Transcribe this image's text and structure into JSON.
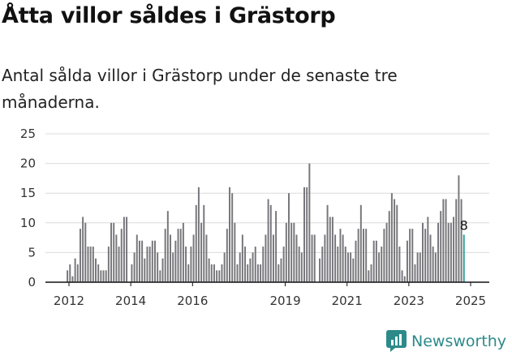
{
  "header": {
    "title": "Åtta villor såldes i Grästorp",
    "subtitle": "Antal sålda villor i Grästorp under de senaste tre månaderna."
  },
  "brand": {
    "name": "Newsworthy",
    "icon": "newsworthy-chart-logo-icon",
    "color": "#2c8a89"
  },
  "colors": {
    "bar": "#77767b",
    "highlight": "#2ba29b",
    "grid": "#dcdcdc",
    "axis": "#111111"
  },
  "chart_data": {
    "type": "bar",
    "title": "",
    "xlabel": "",
    "ylabel": "",
    "ylim": [
      0,
      25
    ],
    "yticks": [
      0,
      5,
      10,
      15,
      20,
      25
    ],
    "xticks": [
      "2012",
      "2014",
      "2016",
      "2019",
      "2021",
      "2023",
      "2025"
    ],
    "xtick_positions": [
      2012,
      2014,
      2016,
      2019,
      2021,
      2023,
      2025
    ],
    "grid": true,
    "x_start": 2011.95,
    "x_step": 0.0833333,
    "values": [
      2,
      3,
      1,
      4,
      3,
      9,
      11,
      10,
      6,
      6,
      6,
      4,
      3,
      2,
      2,
      2,
      6,
      10,
      10,
      8,
      6,
      9,
      11,
      11,
      0,
      3,
      5,
      8,
      7,
      7,
      4,
      6,
      6,
      7,
      7,
      5,
      2,
      4,
      9,
      12,
      8,
      5,
      7,
      9,
      9,
      10,
      6,
      3,
      6,
      8,
      13,
      16,
      10,
      13,
      8,
      4,
      3,
      3,
      2,
      2,
      3,
      5,
      9,
      16,
      15,
      10,
      3,
      5,
      8,
      6,
      3,
      4,
      5,
      6,
      3,
      3,
      6,
      8,
      14,
      13,
      8,
      12,
      3,
      4,
      6,
      10,
      15,
      10,
      10,
      8,
      6,
      5,
      16,
      16,
      20,
      8,
      8,
      0,
      4,
      6,
      8,
      13,
      11,
      11,
      8,
      6,
      9,
      8,
      6,
      5,
      5,
      4,
      7,
      9,
      13,
      9,
      9,
      2,
      3,
      7,
      7,
      5,
      6,
      9,
      10,
      12,
      15,
      14,
      13,
      6,
      2,
      1,
      7,
      9,
      9,
      3,
      5,
      5,
      10,
      9,
      11,
      8,
      6,
      5,
      10,
      12,
      14,
      14,
      10,
      10,
      11,
      14,
      18,
      14,
      8
    ],
    "highlight_last": true,
    "last_label": "8"
  }
}
